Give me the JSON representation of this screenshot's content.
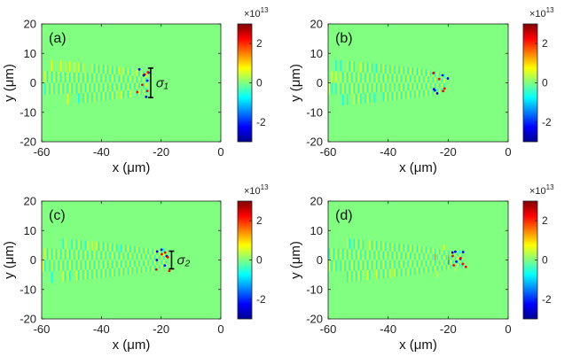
{
  "figure": {
    "panels": [
      {
        "label": "(a)",
        "sigma": "σ₁",
        "front_x": -25,
        "spread": 5
      },
      {
        "label": "(b)",
        "sigma": "",
        "front_x": -21,
        "spread": 4
      },
      {
        "label": "(c)",
        "sigma": "σ₂",
        "front_x": -18,
        "spread": 3
      },
      {
        "label": "(d)",
        "sigma": "",
        "front_x": -15,
        "spread": 2
      }
    ]
  },
  "chart_data": {
    "type": "heatmap",
    "title": "",
    "xlabel": "x (μm)",
    "ylabel": "y (μm)",
    "xlim": [
      -60,
      0
    ],
    "ylim": [
      -20,
      20
    ],
    "xticks": [
      -60,
      -40,
      -20,
      0
    ],
    "xtick_labels": [
      "-60",
      "-40",
      "-20",
      "0"
    ],
    "yticks": [
      20,
      10,
      0,
      -10,
      -20
    ],
    "ytick_labels": [
      "20",
      "10",
      "0",
      "-10",
      "-20"
    ],
    "colorbar": {
      "range": [
        -3,
        3
      ],
      "ticks": [
        2,
        0,
        -2
      ],
      "tick_labels": [
        "2",
        "0",
        "-2"
      ],
      "exponent_base": "×10",
      "exponent_power": "13",
      "colormap": "jet",
      "colors": [
        "#00008f",
        "#0000ff",
        "#00ffff",
        "#80ff80",
        "#ffff00",
        "#ff0000",
        "#800000"
      ]
    },
    "background_color": "#80ff80"
  }
}
